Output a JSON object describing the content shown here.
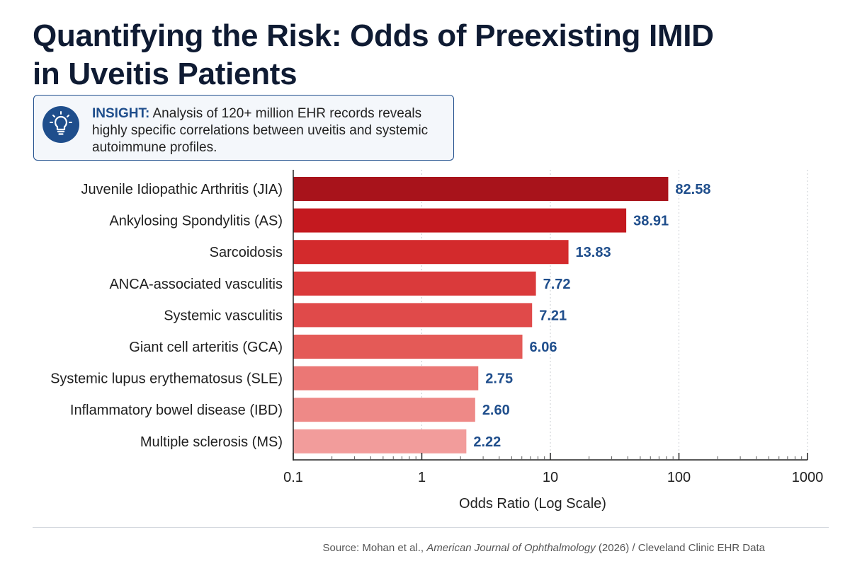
{
  "title": "Quantifying the Risk: Odds of Preexisting IMID in Uveitis Patients",
  "insight": {
    "label": "INSIGHT:",
    "text": " Analysis of 120+ million EHR records reveals highly specific correlations between uveitis and systemic autoimmune profiles.",
    "icon": "lightbulb-icon"
  },
  "chart_data": {
    "type": "bar",
    "orientation": "horizontal",
    "xscale": "log",
    "xlim": [
      0.1,
      1000
    ],
    "xticks": [
      "0.1",
      "1",
      "10",
      "100",
      "1000"
    ],
    "xtick_values": [
      0.1,
      1,
      10,
      100,
      1000
    ],
    "xlabel": "Odds Ratio (Log Scale)",
    "ylabel": "",
    "grid": "vertical dotted at decades",
    "categories": [
      "Juvenile Idiopathic Arthritis (JIA)",
      "Ankylosing Spondylitis (AS)",
      "Sarcoidosis",
      "ANCA-associated vasculitis",
      "Systemic vasculitis",
      "Giant cell arteritis (GCA)",
      "Systemic lupus erythematosus (SLE)",
      "Inflammatory bowel disease (IBD)",
      "Multiple sclerosis (MS)"
    ],
    "values": [
      82.58,
      38.91,
      13.83,
      7.72,
      7.21,
      6.06,
      2.75,
      2.6,
      2.22
    ],
    "labels": [
      "82.58",
      "38.91",
      "13.83",
      "7.72",
      "7.21",
      "6.06",
      "2.75",
      "2.60",
      "2.22"
    ],
    "colors": [
      "#a8131b",
      "#c4191f",
      "#d32a2c",
      "#da3a3b",
      "#e04a4a",
      "#e45a57",
      "#eb7775",
      "#ee8987",
      "#f29c9b"
    ],
    "value_label_color": "#1f4e8c"
  },
  "source": {
    "prefix": "Source: Mohan et al., ",
    "journal": "American Journal of Ophthalmology",
    "suffix": " (2026) / Cleveland Clinic EHR Data"
  }
}
